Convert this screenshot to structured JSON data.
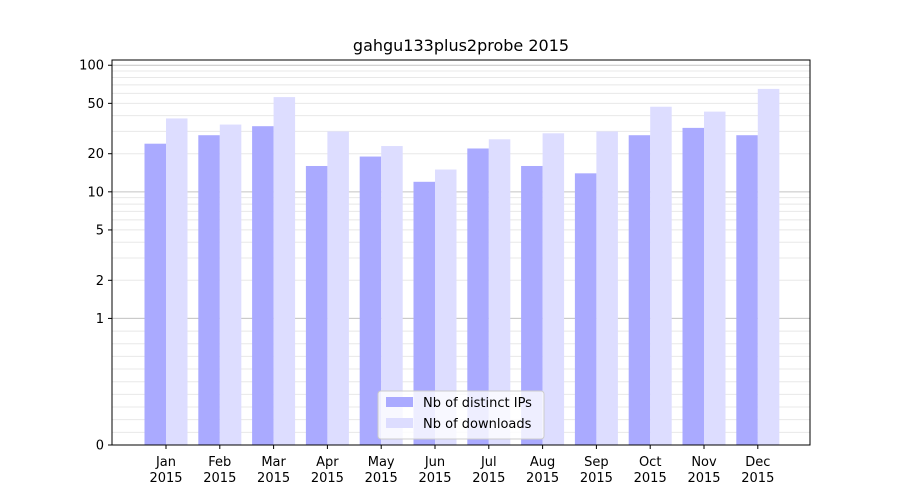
{
  "chart_data": {
    "type": "bar",
    "title": "gahgu133plus2probe 2015",
    "xlabel": "",
    "ylabel": "",
    "yscale": "symlog",
    "ylim": [
      0,
      110
    ],
    "yticks": [
      0,
      1,
      2,
      5,
      10,
      20,
      50,
      100
    ],
    "categories": [
      [
        "Jan",
        "2015"
      ],
      [
        "Feb",
        "2015"
      ],
      [
        "Mar",
        "2015"
      ],
      [
        "Apr",
        "2015"
      ],
      [
        "May",
        "2015"
      ],
      [
        "Jun",
        "2015"
      ],
      [
        "Jul",
        "2015"
      ],
      [
        "Aug",
        "2015"
      ],
      [
        "Sep",
        "2015"
      ],
      [
        "Oct",
        "2015"
      ],
      [
        "Nov",
        "2015"
      ],
      [
        "Dec",
        "2015"
      ]
    ],
    "series": [
      {
        "name": "Nb of distinct IPs",
        "color": "#aaaaff",
        "values": [
          24,
          28,
          33,
          16,
          19,
          12,
          22,
          16,
          14,
          28,
          32,
          28
        ]
      },
      {
        "name": "Nb of downloads",
        "color": "#ddddff",
        "values": [
          38,
          34,
          56,
          30,
          23,
          15,
          26,
          29,
          30,
          47,
          43,
          65
        ]
      }
    ],
    "grid": true,
    "legend_position": "bottom-center"
  }
}
